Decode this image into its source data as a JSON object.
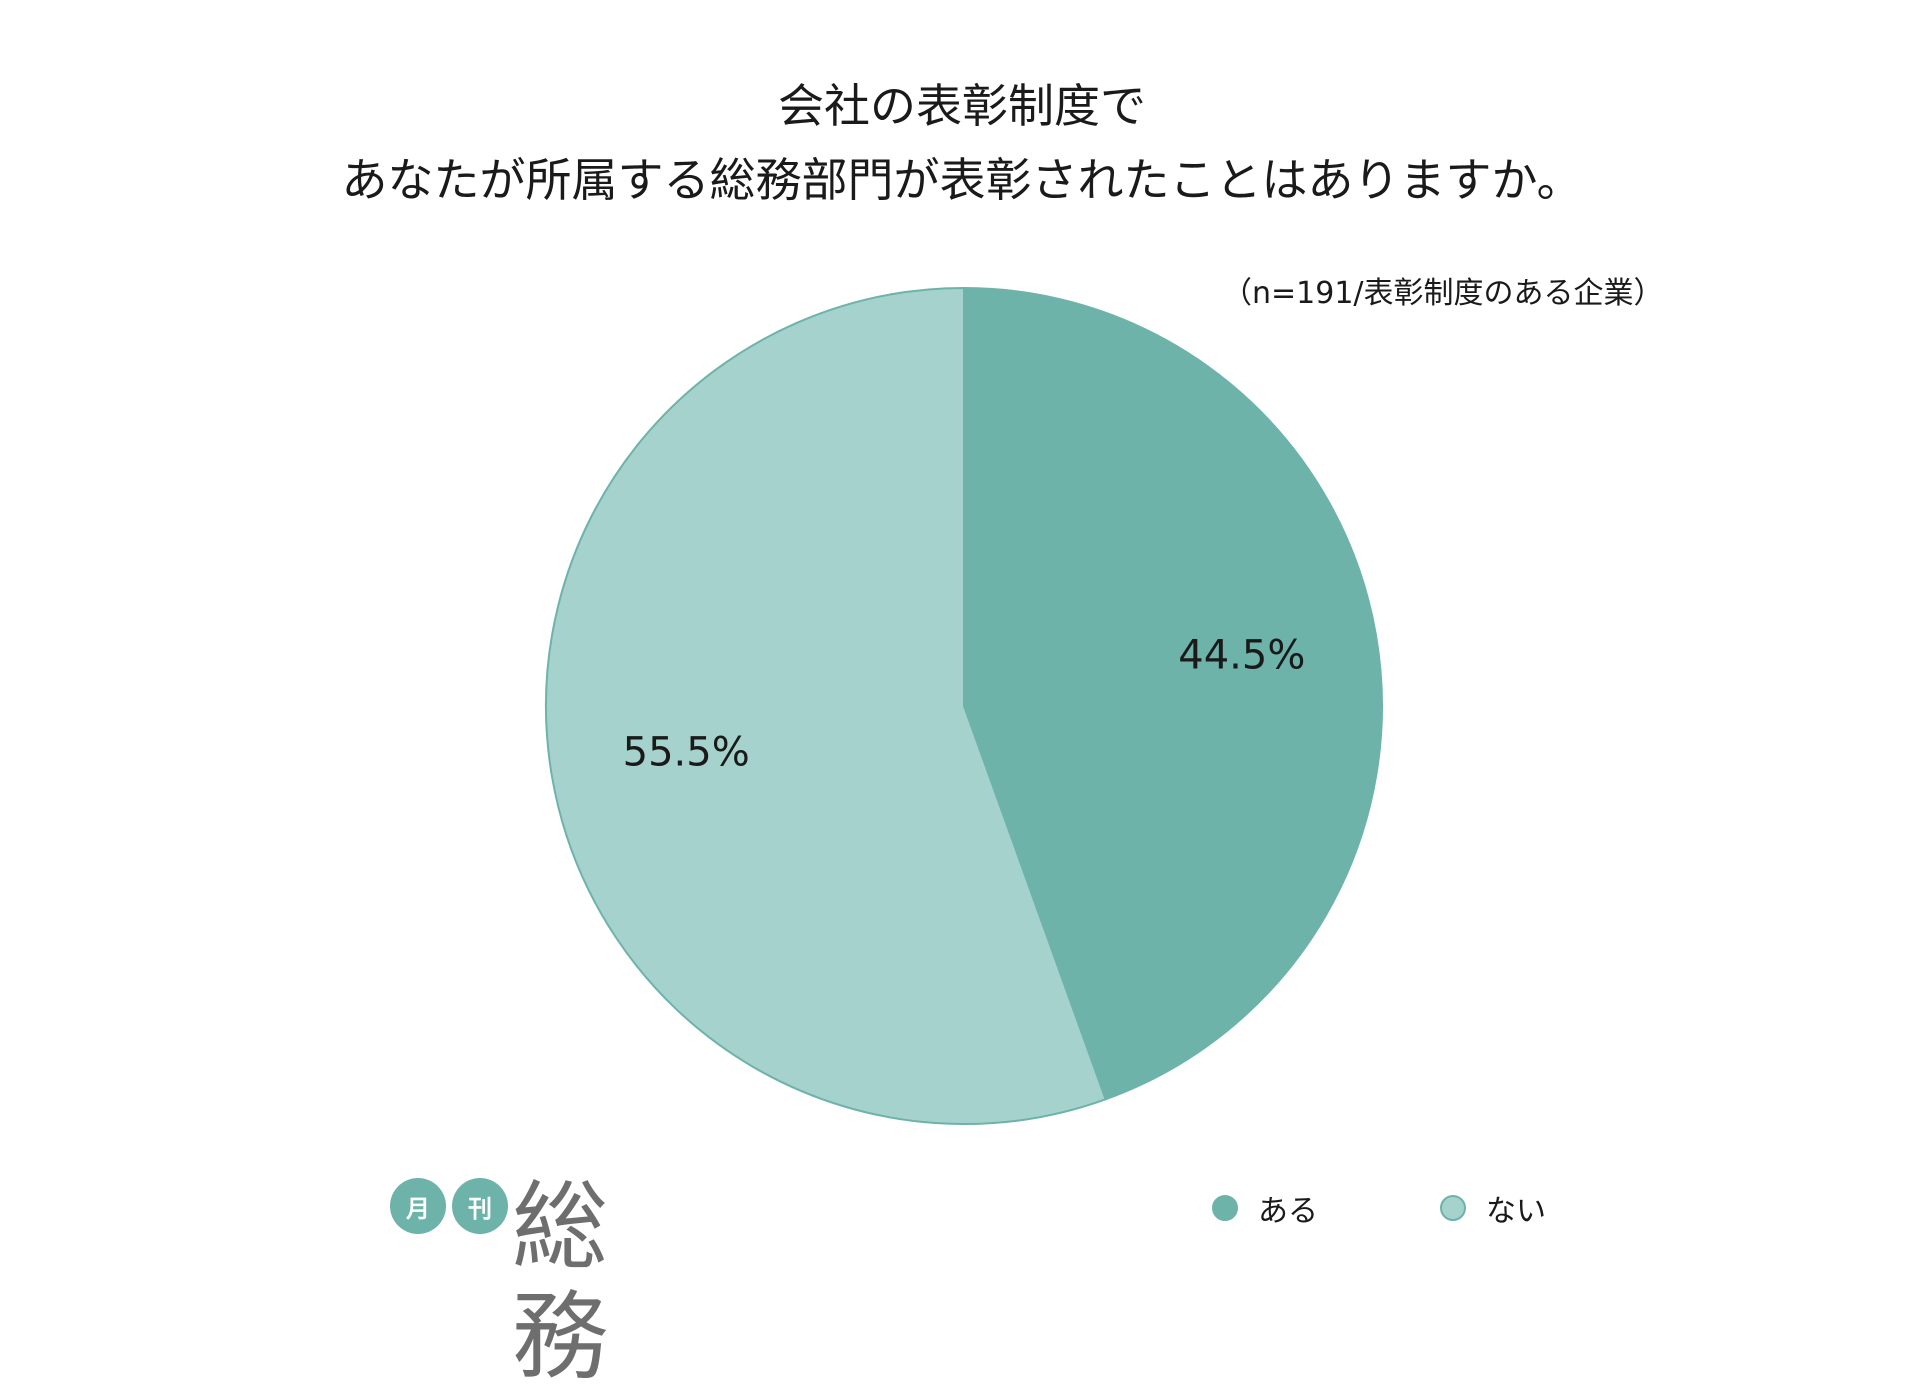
{
  "chart_data": {
    "type": "pie",
    "title_lines": [
      "会社の表彰制度で",
      "あなたが所属する総務部門が表彰されたことはありますか。"
    ],
    "note": "（n=191/表彰制度のある企業）",
    "slices": [
      {
        "label": "ある",
        "value": 44.5,
        "value_label": "44.5%",
        "color": "#6db3aa"
      },
      {
        "label": "ない",
        "value": 55.5,
        "value_label": "55.5%",
        "color": "#a5d2cc"
      }
    ],
    "start_angle": "12 o'clock",
    "direction": "clockwise",
    "legend_position": "bottom-right"
  },
  "logo": {
    "badge1": "月",
    "badge2": "刊",
    "main": "総務",
    "badge_color": "#6db3aa",
    "text_color": "#6e6e6e"
  },
  "colors": {
    "outline": "#6db3aa"
  }
}
